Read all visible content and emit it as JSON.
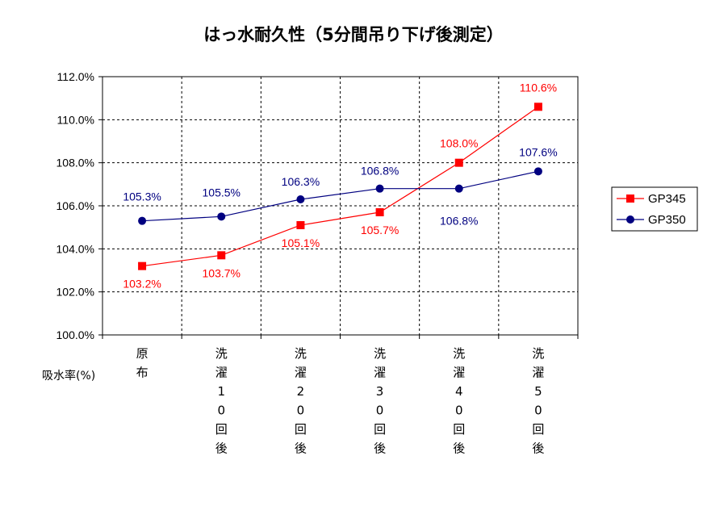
{
  "chart_data": {
    "type": "line",
    "title": "はっ水耐久性（5分間吊り下げ後測定）",
    "ylabel": "吸水率(%)",
    "ylim": [
      100,
      112
    ],
    "ytick_step": 2,
    "ytick_labels": [
      "100.0%",
      "102.0%",
      "104.0%",
      "106.0%",
      "108.0%",
      "110.0%",
      "112.0%"
    ],
    "categories": [
      "原布",
      "洗濯10回後",
      "洗濯20回後",
      "洗濯30回後",
      "洗濯40回後",
      "洗濯50回後"
    ],
    "grid": true,
    "legend_position": "right",
    "series": [
      {
        "name": "GP345",
        "color": "#ff0000",
        "marker": "square",
        "values": [
          103.2,
          103.7,
          105.1,
          105.7,
          108.0,
          110.6
        ],
        "labels": [
          "103.2%",
          "103.7%",
          "105.1%",
          "105.7%",
          "108.0%",
          "110.6%"
        ]
      },
      {
        "name": "GP350",
        "color": "#000080",
        "marker": "circle",
        "values": [
          105.3,
          105.5,
          106.3,
          106.8,
          106.8,
          107.6
        ],
        "labels": [
          "105.3%",
          "105.5%",
          "106.3%",
          "106.8%",
          "106.8%",
          "107.6%"
        ]
      }
    ]
  }
}
